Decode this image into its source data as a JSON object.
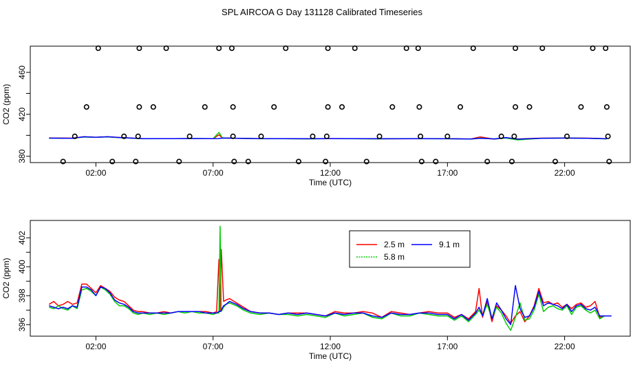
{
  "page_title": "SPL AIRCOA G  Day 131128  Calibrated Timeseries",
  "chart_data": [
    {
      "type": "scatter",
      "xlabel": "Time (UTC)",
      "ylabel": "CO2 (ppm)",
      "x_ticks": [
        "02:00",
        "07:00",
        "12:00",
        "17:00",
        "22:00"
      ],
      "x_tick_values": [
        2,
        7,
        12,
        17,
        22
      ],
      "y_ticks": [
        "380",
        "420",
        "460"
      ],
      "y_tick_values": [
        380,
        420,
        460
      ],
      "y_minor_ticks": [
        400,
        440
      ],
      "xlim": [
        -0.8,
        24.8
      ],
      "ylim": [
        374,
        485
      ],
      "grid": false,
      "legend": "none",
      "point_style": "open circle",
      "points": [
        {
          "x": 0.6,
          "y": 375
        },
        {
          "x": 1.1,
          "y": 399
        },
        {
          "x": 1.6,
          "y": 427
        },
        {
          "x": 2.1,
          "y": 483
        },
        {
          "x": 2.7,
          "y": 375
        },
        {
          "x": 3.2,
          "y": 399
        },
        {
          "x": 3.7,
          "y": 375
        },
        {
          "x": 3.8,
          "y": 399
        },
        {
          "x": 3.85,
          "y": 427
        },
        {
          "x": 3.85,
          "y": 483
        },
        {
          "x": 4.45,
          "y": 427
        },
        {
          "x": 5.0,
          "y": 483
        },
        {
          "x": 5.55,
          "y": 375
        },
        {
          "x": 6.0,
          "y": 399
        },
        {
          "x": 6.65,
          "y": 427
        },
        {
          "x": 7.25,
          "y": 483
        },
        {
          "x": 7.8,
          "y": 483
        },
        {
          "x": 7.85,
          "y": 427
        },
        {
          "x": 7.85,
          "y": 399
        },
        {
          "x": 7.9,
          "y": 375
        },
        {
          "x": 8.5,
          "y": 375
        },
        {
          "x": 9.05,
          "y": 399
        },
        {
          "x": 9.6,
          "y": 427
        },
        {
          "x": 10.1,
          "y": 483
        },
        {
          "x": 10.65,
          "y": 375
        },
        {
          "x": 11.25,
          "y": 399
        },
        {
          "x": 11.8,
          "y": 375
        },
        {
          "x": 11.85,
          "y": 399
        },
        {
          "x": 11.9,
          "y": 427
        },
        {
          "x": 11.9,
          "y": 483
        },
        {
          "x": 12.5,
          "y": 427
        },
        {
          "x": 13.05,
          "y": 483
        },
        {
          "x": 13.55,
          "y": 375
        },
        {
          "x": 14.1,
          "y": 399
        },
        {
          "x": 14.65,
          "y": 427
        },
        {
          "x": 15.25,
          "y": 483
        },
        {
          "x": 15.75,
          "y": 483
        },
        {
          "x": 15.8,
          "y": 427
        },
        {
          "x": 15.85,
          "y": 399
        },
        {
          "x": 15.9,
          "y": 375
        },
        {
          "x": 16.5,
          "y": 375
        },
        {
          "x": 17.0,
          "y": 399
        },
        {
          "x": 17.55,
          "y": 427
        },
        {
          "x": 18.1,
          "y": 483
        },
        {
          "x": 18.7,
          "y": 375
        },
        {
          "x": 19.3,
          "y": 399
        },
        {
          "x": 19.75,
          "y": 375
        },
        {
          "x": 19.85,
          "y": 399
        },
        {
          "x": 19.9,
          "y": 427
        },
        {
          "x": 19.9,
          "y": 483
        },
        {
          "x": 20.5,
          "y": 427
        },
        {
          "x": 21.05,
          "y": 483
        },
        {
          "x": 21.6,
          "y": 375
        },
        {
          "x": 22.1,
          "y": 399
        },
        {
          "x": 22.7,
          "y": 427
        },
        {
          "x": 23.2,
          "y": 483
        },
        {
          "x": 23.75,
          "y": 483
        },
        {
          "x": 23.8,
          "y": 427
        },
        {
          "x": 23.85,
          "y": 399
        },
        {
          "x": 23.9,
          "y": 375
        }
      ],
      "series": [
        {
          "color": "#ff0000",
          "x": [
            0,
            1,
            1.5,
            2,
            2.5,
            3,
            4,
            5,
            6,
            7,
            7.25,
            7.4,
            7.6,
            8,
            9,
            10,
            11,
            12,
            13,
            14,
            15,
            16,
            17,
            18,
            18.4,
            19,
            19.5,
            20,
            21,
            22,
            23,
            23.8
          ],
          "y": [
            397.5,
            397.3,
            398.6,
            398.2,
            398.6,
            398,
            396.8,
            396.8,
            396.9,
            396.8,
            400.5,
            397.4,
            397.5,
            397.2,
            396.8,
            396.8,
            396.7,
            396.9,
            396.8,
            396.7,
            396.7,
            396.8,
            396.8,
            396.5,
            398.5,
            396.3,
            397.7,
            396.5,
            397.3,
            397.4,
            397.3,
            396.7
          ]
        },
        {
          "color": "#00cc00",
          "x": [
            0,
            1,
            1.5,
            2,
            2.5,
            3,
            4,
            5,
            6,
            7,
            7.25,
            7.4,
            7.6,
            8,
            9,
            10,
            11,
            12,
            13,
            14,
            15,
            16,
            17,
            18,
            18.4,
            19,
            19.5,
            20,
            21,
            22,
            23,
            23.8
          ],
          "y": [
            397.3,
            397.1,
            398.4,
            398.1,
            398.5,
            397.8,
            396.7,
            396.8,
            396.9,
            396.8,
            402.8,
            397.5,
            397.4,
            397.1,
            396.7,
            396.7,
            396.6,
            396.8,
            396.7,
            396.6,
            396.8,
            396.7,
            396.7,
            396.4,
            397.4,
            396.5,
            397.4,
            395.6,
            397.2,
            397.4,
            397.1,
            396.6
          ]
        },
        {
          "color": "#0000ff",
          "x": [
            0,
            1,
            1.5,
            2,
            2.5,
            3,
            4,
            5,
            6,
            7,
            7.25,
            7.4,
            7.6,
            8,
            9,
            10,
            11,
            12,
            13,
            14,
            15,
            16,
            17,
            18,
            18.4,
            19,
            19.5,
            20,
            21,
            22,
            23,
            23.8
          ],
          "y": [
            397.3,
            397.1,
            398.6,
            398.1,
            398.6,
            397.9,
            396.8,
            396.8,
            396.9,
            396.8,
            396.9,
            397.4,
            397.3,
            397.1,
            396.8,
            396.8,
            396.7,
            396.8,
            396.8,
            396.7,
            396.7,
            396.8,
            396.7,
            396.5,
            397.2,
            396.6,
            397.8,
            396.3,
            397.2,
            397.4,
            397.2,
            396.7
          ]
        }
      ]
    },
    {
      "type": "line",
      "xlabel": "Time (UTC)",
      "ylabel": "CO2 (ppm)",
      "x_ticks": [
        "02:00",
        "07:00",
        "12:00",
        "17:00",
        "22:00"
      ],
      "x_tick_values": [
        2,
        7,
        12,
        17,
        22
      ],
      "y_ticks": [
        "396",
        "398",
        "400",
        "402"
      ],
      "y_tick_values": [
        396,
        398,
        400,
        402
      ],
      "y_minor_ticks": [
        397,
        399,
        401
      ],
      "xlim": [
        -0.8,
        24.8
      ],
      "ylim": [
        395.2,
        403.2
      ],
      "grid": false,
      "legend": "top-center",
      "series": [
        {
          "name": "2.5 m",
          "color": "#ff0000",
          "x": [
            0.0,
            0.2,
            0.4,
            0.6,
            0.8,
            1.0,
            1.2,
            1.4,
            1.6,
            1.8,
            2.0,
            2.2,
            2.4,
            2.6,
            2.8,
            3.0,
            3.2,
            3.4,
            3.6,
            3.8,
            4.0,
            4.3,
            4.6,
            4.9,
            5.2,
            5.5,
            5.8,
            6.1,
            6.4,
            6.7,
            7.0,
            7.15,
            7.25,
            7.3,
            7.35,
            7.45,
            7.55,
            7.7,
            8.0,
            8.3,
            8.6,
            9.0,
            9.4,
            9.8,
            10.2,
            10.6,
            11.0,
            11.4,
            11.8,
            12.2,
            12.6,
            13.0,
            13.4,
            13.8,
            14.2,
            14.6,
            15.0,
            15.4,
            15.8,
            16.2,
            16.6,
            17.0,
            17.3,
            17.6,
            17.9,
            18.2,
            18.35,
            18.5,
            18.7,
            18.9,
            19.1,
            19.3,
            19.5,
            19.7,
            19.9,
            20.1,
            20.3,
            20.5,
            20.7,
            20.9,
            21.1,
            21.3,
            21.5,
            21.7,
            21.9,
            22.1,
            22.3,
            22.5,
            22.7,
            22.9,
            23.1,
            23.3,
            23.5,
            23.7
          ],
          "y": [
            397.4,
            397.6,
            397.3,
            397.4,
            397.6,
            397.4,
            397.5,
            398.8,
            398.8,
            398.5,
            398.2,
            398.7,
            398.5,
            398.3,
            397.9,
            397.7,
            397.6,
            397.3,
            397.0,
            396.9,
            396.9,
            396.8,
            396.8,
            396.9,
            396.8,
            396.9,
            396.9,
            396.9,
            396.9,
            396.9,
            396.8,
            396.9,
            400.5,
            396.9,
            401.2,
            397.6,
            397.7,
            397.8,
            397.5,
            397.2,
            396.9,
            396.8,
            396.8,
            396.7,
            396.8,
            396.8,
            396.8,
            396.7,
            396.6,
            396.9,
            396.8,
            396.8,
            396.9,
            396.8,
            396.5,
            396.9,
            396.8,
            396.7,
            396.8,
            396.9,
            396.8,
            396.8,
            396.5,
            396.7,
            396.4,
            396.9,
            398.5,
            396.5,
            397.6,
            396.2,
            397.3,
            397.0,
            396.6,
            396.1,
            396.6,
            396.9,
            396.2,
            396.6,
            397.3,
            398.5,
            397.5,
            397.6,
            397.4,
            397.5,
            397.2,
            397.4,
            397.1,
            397.4,
            397.5,
            397.2,
            397.3,
            397.6,
            396.5,
            396.6
          ]
        },
        {
          "name": "5.8 m",
          "color": "#00cc00",
          "x": [
            0.0,
            0.2,
            0.4,
            0.6,
            0.8,
            1.0,
            1.2,
            1.4,
            1.6,
            1.8,
            2.0,
            2.2,
            2.4,
            2.6,
            2.8,
            3.0,
            3.2,
            3.4,
            3.6,
            3.8,
            4.0,
            4.3,
            4.6,
            4.9,
            5.2,
            5.5,
            5.8,
            6.1,
            6.4,
            6.7,
            7.0,
            7.15,
            7.25,
            7.3,
            7.35,
            7.45,
            7.55,
            7.7,
            8.0,
            8.3,
            8.6,
            9.0,
            9.4,
            9.8,
            10.2,
            10.6,
            11.0,
            11.4,
            11.8,
            12.2,
            12.6,
            13.0,
            13.4,
            13.8,
            14.2,
            14.6,
            15.0,
            15.4,
            15.8,
            16.2,
            16.6,
            17.0,
            17.3,
            17.6,
            17.9,
            18.2,
            18.35,
            18.5,
            18.7,
            18.9,
            19.1,
            19.3,
            19.5,
            19.7,
            19.9,
            20.1,
            20.3,
            20.5,
            20.7,
            20.9,
            21.1,
            21.3,
            21.5,
            21.7,
            21.9,
            22.1,
            22.3,
            22.5,
            22.7,
            22.9,
            23.1,
            23.3,
            23.5,
            23.7
          ],
          "y": [
            397.2,
            397.1,
            397.3,
            397.1,
            397.0,
            397.3,
            397.1,
            398.4,
            398.5,
            398.3,
            398.0,
            398.6,
            398.4,
            398.1,
            397.6,
            397.3,
            397.3,
            397.1,
            396.8,
            396.7,
            396.8,
            396.7,
            396.8,
            396.7,
            396.8,
            396.9,
            396.8,
            396.9,
            396.8,
            396.8,
            396.7,
            396.8,
            396.8,
            402.8,
            396.9,
            397.2,
            397.4,
            397.5,
            397.3,
            397.0,
            396.8,
            396.7,
            396.8,
            396.7,
            396.7,
            396.6,
            396.7,
            396.6,
            396.5,
            396.8,
            396.6,
            396.7,
            396.8,
            396.5,
            396.4,
            396.8,
            396.6,
            396.6,
            396.8,
            396.7,
            396.6,
            396.6,
            396.3,
            396.6,
            396.2,
            396.7,
            397.0,
            396.6,
            397.4,
            396.4,
            397.2,
            396.8,
            396.1,
            395.6,
            396.5,
            397.5,
            396.3,
            396.4,
            397.0,
            398.1,
            396.9,
            397.2,
            397.3,
            397.1,
            397.0,
            397.3,
            396.7,
            397.2,
            397.3,
            397.0,
            396.8,
            397.0,
            396.4,
            396.6
          ]
        },
        {
          "name": "9.1 m",
          "color": "#0000ff",
          "x": [
            0.0,
            0.2,
            0.4,
            0.6,
            0.8,
            1.0,
            1.2,
            1.4,
            1.6,
            1.8,
            2.0,
            2.2,
            2.4,
            2.6,
            2.8,
            3.0,
            3.2,
            3.4,
            3.6,
            3.8,
            4.0,
            4.3,
            4.6,
            4.9,
            5.2,
            5.5,
            5.8,
            6.1,
            6.4,
            6.7,
            7.0,
            7.15,
            7.25,
            7.3,
            7.35,
            7.45,
            7.55,
            7.7,
            8.0,
            8.3,
            8.6,
            9.0,
            9.4,
            9.8,
            10.2,
            10.6,
            11.0,
            11.4,
            11.8,
            12.2,
            12.6,
            13.0,
            13.4,
            13.8,
            14.2,
            14.6,
            15.0,
            15.4,
            15.8,
            16.2,
            16.6,
            17.0,
            17.3,
            17.6,
            17.9,
            18.2,
            18.35,
            18.5,
            18.7,
            18.9,
            19.1,
            19.3,
            19.5,
            19.7,
            19.9,
            20.1,
            20.3,
            20.5,
            20.7,
            20.9,
            21.1,
            21.3,
            21.5,
            21.7,
            21.9,
            22.1,
            22.3,
            22.5,
            22.7,
            22.9,
            23.1,
            23.3,
            23.5,
            23.7,
            24.0
          ],
          "y": [
            397.3,
            397.2,
            397.1,
            397.2,
            397.1,
            397.3,
            397.2,
            398.6,
            398.6,
            398.4,
            398.0,
            398.6,
            398.5,
            398.2,
            397.7,
            397.5,
            397.4,
            397.2,
            396.9,
            396.8,
            396.8,
            396.8,
            396.8,
            396.8,
            396.8,
            396.9,
            396.9,
            396.9,
            396.9,
            396.8,
            396.8,
            396.8,
            396.9,
            396.9,
            397.0,
            397.3,
            397.4,
            397.6,
            397.4,
            397.1,
            396.9,
            396.8,
            396.8,
            396.7,
            396.8,
            396.7,
            396.8,
            396.7,
            396.6,
            396.8,
            396.7,
            396.8,
            396.8,
            396.6,
            396.5,
            396.8,
            396.7,
            396.7,
            396.8,
            396.8,
            396.7,
            396.7,
            396.4,
            396.7,
            396.3,
            396.8,
            397.2,
            396.6,
            397.8,
            396.4,
            397.5,
            397.0,
            396.4,
            396.0,
            398.7,
            397.1,
            396.5,
            396.6,
            397.2,
            398.3,
            397.3,
            397.5,
            397.4,
            397.3,
            397.1,
            397.4,
            396.9,
            397.3,
            397.4,
            397.1,
            397.0,
            397.2,
            396.6,
            396.6,
            396.6
          ]
        }
      ]
    }
  ]
}
